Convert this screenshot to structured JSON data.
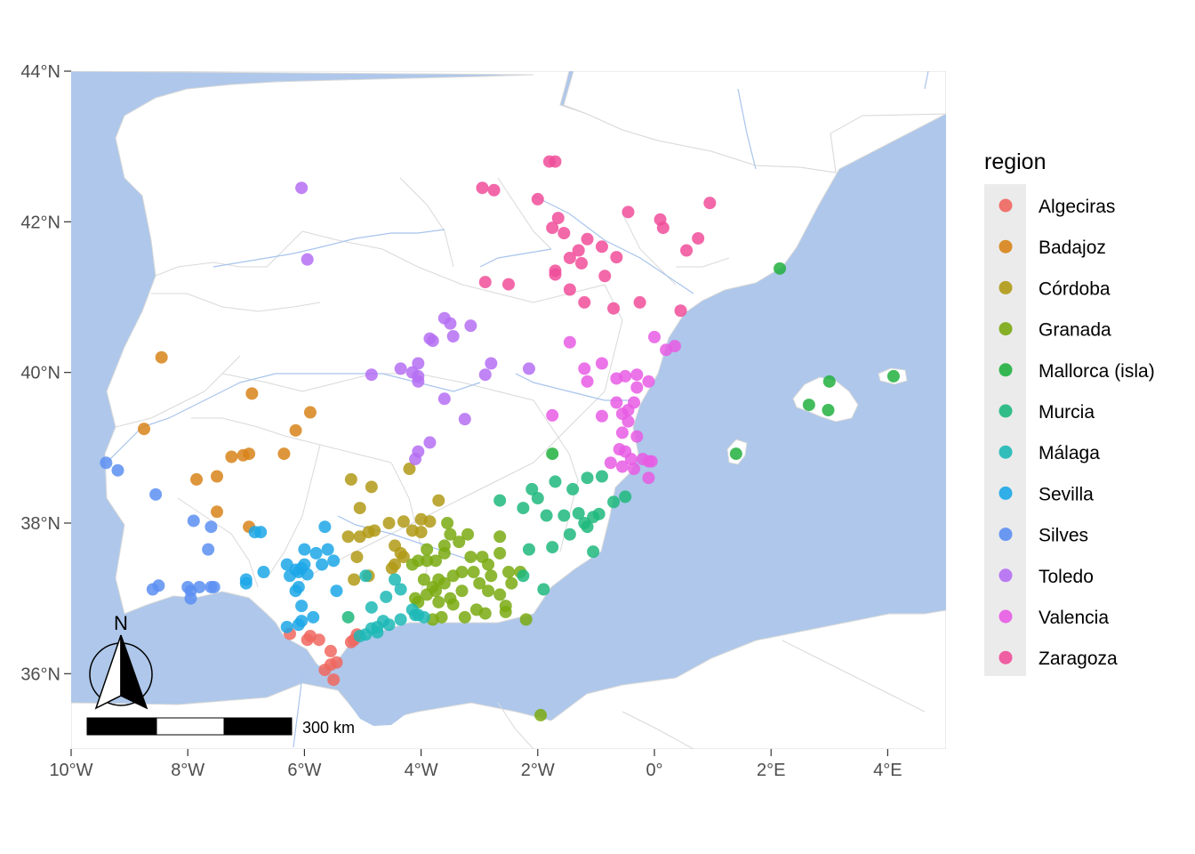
{
  "legend": {
    "title": "region",
    "items": [
      {
        "label": "Algeciras",
        "color": "#F0675F"
      },
      {
        "label": "Badajoz",
        "color": "#D8841A"
      },
      {
        "label": "Córdoba",
        "color": "#B09A16"
      },
      {
        "label": "Granada",
        "color": "#7AAA12"
      },
      {
        "label": "Mallorca (isla)",
        "color": "#22B040"
      },
      {
        "label": "Murcia",
        "color": "#1EB87D"
      },
      {
        "label": "Málaga",
        "color": "#1DB9B6"
      },
      {
        "label": "Sevilla",
        "color": "#1CA7E8"
      },
      {
        "label": "Silves",
        "color": "#5C8FF2"
      },
      {
        "label": "Toledo",
        "color": "#B56EF3"
      },
      {
        "label": "Valencia",
        "color": "#E85CE4"
      },
      {
        "label": "Zaragoza",
        "color": "#F04E9A"
      }
    ]
  },
  "axes": {
    "x_ticks": [
      {
        "value": -10,
        "label": "10°W"
      },
      {
        "value": -8,
        "label": "8°W"
      },
      {
        "value": -6,
        "label": "6°W"
      },
      {
        "value": -4,
        "label": "4°W"
      },
      {
        "value": -2,
        "label": "2°W"
      },
      {
        "value": 0,
        "label": "0°"
      },
      {
        "value": 2,
        "label": "2°E"
      },
      {
        "value": 4,
        "label": "4°E"
      }
    ],
    "y_ticks": [
      {
        "value": 44,
        "label": "44°N"
      },
      {
        "value": 42,
        "label": "42°N"
      },
      {
        "value": 40,
        "label": "40°N"
      },
      {
        "value": 38,
        "label": "38°N"
      },
      {
        "value": 36,
        "label": "36°N"
      }
    ],
    "xlim": [
      -10,
      5
    ],
    "ylim": [
      35,
      44
    ]
  },
  "scale_bar": {
    "label": "300 km"
  },
  "north_arrow": {
    "label": "N"
  },
  "colors": {
    "sea": "#AEC7EA",
    "land": "#FFFFFF",
    "rivers": "#A8C4EC",
    "borders": "#D9D9D9"
  },
  "chart_data": {
    "type": "scatter",
    "xlabel": "",
    "ylabel": "",
    "xlim": [
      -10,
      5
    ],
    "ylim": [
      35,
      44
    ],
    "grid": false,
    "legend_position": "right",
    "series": [
      {
        "name": "Algeciras",
        "points": [
          [
            -6.25,
            36.53
          ],
          [
            -5.95,
            36.45
          ],
          [
            -5.9,
            36.5
          ],
          [
            -5.75,
            36.45
          ],
          [
            -5.55,
            36.3
          ],
          [
            -5.45,
            36.15
          ],
          [
            -5.55,
            36.12
          ],
          [
            -5.65,
            36.05
          ],
          [
            -5.5,
            35.92
          ],
          [
            -5.2,
            36.42
          ],
          [
            -5.15,
            36.45
          ],
          [
            -5.1,
            36.52
          ]
        ]
      },
      {
        "name": "Badajoz",
        "points": [
          [
            -8.45,
            40.2
          ],
          [
            -6.9,
            39.72
          ],
          [
            -5.9,
            39.47
          ],
          [
            -8.75,
            39.25
          ],
          [
            -6.15,
            39.23
          ],
          [
            -6.35,
            38.92
          ],
          [
            -6.95,
            38.92
          ],
          [
            -7.05,
            38.9
          ],
          [
            -7.25,
            38.88
          ],
          [
            -7.85,
            38.58
          ],
          [
            -7.5,
            38.62
          ],
          [
            -7.5,
            38.15
          ],
          [
            -6.95,
            37.95
          ]
        ]
      },
      {
        "name": "Córdoba",
        "points": [
          [
            -4.2,
            38.72
          ],
          [
            -5.2,
            38.58
          ],
          [
            -4.85,
            38.48
          ],
          [
            -5.05,
            38.2
          ],
          [
            -3.7,
            38.3
          ],
          [
            -4.55,
            38.0
          ],
          [
            -4.3,
            38.02
          ],
          [
            -4.0,
            38.05
          ],
          [
            -3.85,
            38.02
          ],
          [
            -4.15,
            37.9
          ],
          [
            -4.0,
            37.88
          ],
          [
            -4.8,
            37.9
          ],
          [
            -4.9,
            37.88
          ],
          [
            -5.05,
            37.82
          ],
          [
            -5.25,
            37.82
          ],
          [
            -4.45,
            37.7
          ],
          [
            -4.45,
            37.45
          ],
          [
            -4.5,
            37.4
          ],
          [
            -4.35,
            37.6
          ],
          [
            -4.3,
            37.55
          ],
          [
            -5.1,
            37.55
          ],
          [
            -4.9,
            37.3
          ],
          [
            -5.15,
            37.25
          ]
        ]
      },
      {
        "name": "Granada",
        "points": [
          [
            -3.55,
            38.0
          ],
          [
            -3.5,
            37.85
          ],
          [
            -3.2,
            37.85
          ],
          [
            -2.95,
            37.55
          ],
          [
            -2.85,
            37.45
          ],
          [
            -2.65,
            37.82
          ],
          [
            -2.65,
            37.6
          ],
          [
            -3.1,
            37.35
          ],
          [
            -3.3,
            37.35
          ],
          [
            -3.45,
            37.3
          ],
          [
            -3.6,
            37.6
          ],
          [
            -3.75,
            37.5
          ],
          [
            -3.9,
            37.5
          ],
          [
            -4.05,
            37.5
          ],
          [
            -4.15,
            37.45
          ],
          [
            -3.95,
            37.25
          ],
          [
            -3.8,
            37.15
          ],
          [
            -3.6,
            37.2
          ],
          [
            -3.5,
            37.0
          ],
          [
            -3.3,
            37.1
          ],
          [
            -3.0,
            37.2
          ],
          [
            -2.85,
            37.1
          ],
          [
            -2.8,
            37.3
          ],
          [
            -2.65,
            37.05
          ],
          [
            -2.5,
            37.35
          ],
          [
            -2.45,
            37.2
          ],
          [
            -2.3,
            37.35
          ],
          [
            -2.55,
            36.9
          ],
          [
            -2.55,
            36.82
          ],
          [
            -2.2,
            36.72
          ],
          [
            -2.9,
            36.8
          ],
          [
            -3.05,
            36.85
          ],
          [
            -3.25,
            36.75
          ],
          [
            -3.45,
            36.92
          ],
          [
            -3.65,
            36.75
          ],
          [
            -3.7,
            36.95
          ],
          [
            -3.8,
            36.72
          ],
          [
            -4.05,
            36.95
          ],
          [
            -4.1,
            37.0
          ],
          [
            -3.9,
            37.05
          ],
          [
            -3.75,
            37.1
          ],
          [
            -3.7,
            37.25
          ],
          [
            -3.9,
            37.65
          ],
          [
            -3.6,
            37.7
          ],
          [
            -3.35,
            37.75
          ],
          [
            -3.15,
            37.55
          ],
          [
            -1.95,
            35.45
          ]
        ]
      },
      {
        "name": "Mallorca (isla)",
        "points": [
          [
            2.15,
            41.38
          ],
          [
            4.1,
            39.95
          ],
          [
            3.0,
            39.88
          ],
          [
            2.65,
            39.57
          ],
          [
            2.98,
            39.5
          ],
          [
            1.4,
            38.92
          ],
          [
            -1.75,
            38.92
          ]
        ]
      },
      {
        "name": "Murcia",
        "points": [
          [
            -2.65,
            38.3
          ],
          [
            -2.1,
            38.45
          ],
          [
            -2.0,
            38.33
          ],
          [
            -2.25,
            38.2
          ],
          [
            -1.7,
            38.55
          ],
          [
            -1.4,
            38.45
          ],
          [
            -1.15,
            38.6
          ],
          [
            -0.9,
            38.62
          ],
          [
            -0.7,
            38.28
          ],
          [
            -0.5,
            38.35
          ],
          [
            -1.3,
            38.13
          ],
          [
            -1.55,
            38.1
          ],
          [
            -1.85,
            38.1
          ],
          [
            -1.05,
            38.08
          ],
          [
            -0.95,
            38.12
          ],
          [
            -1.2,
            38.0
          ],
          [
            -1.15,
            37.95
          ],
          [
            -1.45,
            37.85
          ],
          [
            -1.75,
            37.68
          ],
          [
            -2.15,
            37.65
          ],
          [
            -2.25,
            37.3
          ],
          [
            -1.9,
            37.12
          ],
          [
            -1.05,
            37.62
          ],
          [
            -5.25,
            36.75
          ]
        ]
      },
      {
        "name": "Málaga",
        "points": [
          [
            -4.95,
            37.3
          ],
          [
            -4.85,
            36.88
          ],
          [
            -4.45,
            37.25
          ],
          [
            -4.35,
            37.12
          ],
          [
            -4.15,
            36.85
          ],
          [
            -4.05,
            36.78
          ],
          [
            -3.95,
            36.75
          ],
          [
            -4.1,
            36.78
          ],
          [
            -4.35,
            36.72
          ],
          [
            -4.55,
            36.65
          ],
          [
            -4.65,
            36.7
          ],
          [
            -4.75,
            36.62
          ],
          [
            -4.85,
            36.6
          ],
          [
            -4.95,
            36.52
          ],
          [
            -5.05,
            36.5
          ],
          [
            -4.75,
            36.55
          ],
          [
            -4.6,
            37.02
          ]
        ]
      },
      {
        "name": "Sevilla",
        "points": [
          [
            -5.65,
            37.95
          ],
          [
            -5.6,
            37.65
          ],
          [
            -5.5,
            37.5
          ],
          [
            -5.7,
            37.45
          ],
          [
            -5.45,
            37.1
          ],
          [
            -5.8,
            37.6
          ],
          [
            -6.0,
            37.65
          ],
          [
            -6.0,
            37.45
          ],
          [
            -6.05,
            37.4
          ],
          [
            -6.1,
            37.35
          ],
          [
            -6.25,
            37.3
          ],
          [
            -6.1,
            37.15
          ],
          [
            -6.15,
            37.1
          ],
          [
            -6.05,
            36.9
          ],
          [
            -6.05,
            36.7
          ],
          [
            -6.1,
            36.65
          ],
          [
            -5.85,
            36.75
          ],
          [
            -6.3,
            36.62
          ],
          [
            -6.3,
            37.45
          ],
          [
            -6.15,
            37.38
          ],
          [
            -6.7,
            37.35
          ],
          [
            -6.75,
            37.88
          ],
          [
            -6.85,
            37.88
          ],
          [
            -7.0,
            37.25
          ],
          [
            -7.0,
            37.2
          ],
          [
            -5.95,
            37.32
          ]
        ]
      },
      {
        "name": "Silves",
        "points": [
          [
            -9.4,
            38.8
          ],
          [
            -9.2,
            38.7
          ],
          [
            -8.55,
            38.38
          ],
          [
            -7.9,
            38.03
          ],
          [
            -7.6,
            37.95
          ],
          [
            -7.65,
            37.65
          ],
          [
            -8.5,
            37.17
          ],
          [
            -8.6,
            37.12
          ],
          [
            -8.0,
            37.15
          ],
          [
            -7.95,
            37.0
          ],
          [
            -7.8,
            37.15
          ],
          [
            -7.6,
            37.15
          ],
          [
            -7.55,
            37.15
          ],
          [
            -7.95,
            37.1
          ]
        ]
      },
      {
        "name": "Toledo",
        "points": [
          [
            -6.05,
            42.45
          ],
          [
            -5.95,
            41.5
          ],
          [
            -3.6,
            40.72
          ],
          [
            -3.5,
            40.65
          ],
          [
            -3.15,
            40.62
          ],
          [
            -3.85,
            40.45
          ],
          [
            -3.8,
            40.42
          ],
          [
            -3.45,
            40.48
          ],
          [
            -4.05,
            40.12
          ],
          [
            -4.35,
            40.05
          ],
          [
            -4.15,
            40.0
          ],
          [
            -4.05,
            39.95
          ],
          [
            -4.05,
            39.88
          ],
          [
            -4.85,
            39.97
          ],
          [
            -2.8,
            40.12
          ],
          [
            -2.9,
            39.97
          ],
          [
            -2.15,
            40.05
          ],
          [
            -3.6,
            39.65
          ],
          [
            -3.25,
            39.38
          ],
          [
            -3.85,
            39.07
          ],
          [
            -4.05,
            38.95
          ],
          [
            -4.1,
            38.85
          ]
        ]
      },
      {
        "name": "Valencia",
        "points": [
          [
            -1.45,
            40.4
          ],
          [
            -1.2,
            40.05
          ],
          [
            -1.15,
            39.88
          ],
          [
            -0.9,
            40.12
          ],
          [
            -0.65,
            39.92
          ],
          [
            -0.5,
            39.95
          ],
          [
            -0.3,
            39.97
          ],
          [
            -0.1,
            39.88
          ],
          [
            -0.3,
            39.8
          ],
          [
            -0.35,
            39.6
          ],
          [
            -0.45,
            39.5
          ],
          [
            -0.55,
            39.45
          ],
          [
            -0.45,
            39.35
          ],
          [
            -0.55,
            39.2
          ],
          [
            -0.3,
            39.15
          ],
          [
            -0.65,
            39.6
          ],
          [
            -0.9,
            39.42
          ],
          [
            -1.75,
            39.43
          ],
          [
            -0.6,
            38.98
          ],
          [
            -0.75,
            38.8
          ],
          [
            -0.55,
            38.75
          ],
          [
            -0.4,
            38.85
          ],
          [
            -0.2,
            38.85
          ],
          [
            -0.1,
            38.82
          ],
          [
            -0.05,
            38.82
          ],
          [
            -0.35,
            38.72
          ],
          [
            -0.1,
            38.6
          ],
          [
            0.0,
            40.47
          ],
          [
            0.2,
            40.3
          ],
          [
            0.35,
            40.35
          ],
          [
            -0.5,
            38.95
          ]
        ]
      },
      {
        "name": "Zaragoza",
        "points": [
          [
            -1.8,
            42.8
          ],
          [
            -1.7,
            42.8
          ],
          [
            -2.95,
            42.45
          ],
          [
            -2.75,
            42.42
          ],
          [
            -2.0,
            42.3
          ],
          [
            -1.65,
            42.05
          ],
          [
            -1.75,
            41.92
          ],
          [
            -1.55,
            41.85
          ],
          [
            -1.15,
            41.77
          ],
          [
            -1.3,
            41.62
          ],
          [
            -0.9,
            41.67
          ],
          [
            -0.65,
            41.53
          ],
          [
            -0.45,
            42.13
          ],
          [
            0.1,
            42.03
          ],
          [
            0.15,
            41.92
          ],
          [
            0.75,
            41.78
          ],
          [
            0.55,
            41.62
          ],
          [
            0.95,
            42.25
          ],
          [
            -1.45,
            41.52
          ],
          [
            -1.25,
            41.45
          ],
          [
            -1.7,
            41.35
          ],
          [
            -1.7,
            41.3
          ],
          [
            -0.85,
            41.28
          ],
          [
            -1.45,
            41.1
          ],
          [
            -1.2,
            40.93
          ],
          [
            -2.9,
            41.2
          ],
          [
            -2.5,
            41.17
          ],
          [
            -0.7,
            40.85
          ],
          [
            -0.25,
            40.93
          ],
          [
            0.45,
            40.82
          ]
        ]
      }
    ]
  }
}
